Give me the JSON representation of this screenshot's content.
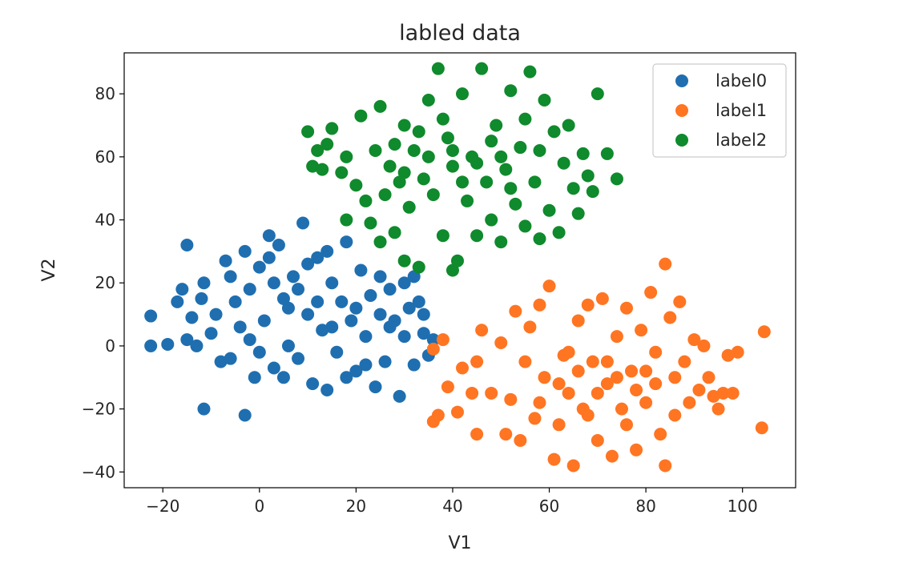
{
  "chart_data": {
    "type": "scatter",
    "title": "labled data",
    "xlabel": "V1",
    "ylabel": "V2",
    "xlim": [
      -28,
      111
    ],
    "ylim": [
      -45,
      93
    ],
    "xticks": [
      -20,
      0,
      20,
      40,
      60,
      80,
      100
    ],
    "yticks": [
      -40,
      -20,
      0,
      20,
      40,
      60,
      80
    ],
    "xtick_labels": [
      "−20",
      "0",
      "20",
      "40",
      "60",
      "80",
      "100"
    ],
    "ytick_labels": [
      "−40",
      "−20",
      "0",
      "20",
      "40",
      "60",
      "80"
    ],
    "grid": false,
    "legend_position": "top-right",
    "series": [
      {
        "name": "label0",
        "color": "#1f6fb0",
        "points": [
          [
            -22.5,
            9.5
          ],
          [
            -22.5,
            0
          ],
          [
            -19,
            0.5
          ],
          [
            -15,
            32
          ],
          [
            -16,
            18
          ],
          [
            -17,
            14
          ],
          [
            -14,
            9
          ],
          [
            -15,
            2
          ],
          [
            -13,
            0
          ],
          [
            -11.5,
            20
          ],
          [
            -11.5,
            -20
          ],
          [
            -9,
            10
          ],
          [
            -7,
            27
          ],
          [
            -8,
            -5
          ],
          [
            -6,
            22
          ],
          [
            -5,
            14
          ],
          [
            -4,
            6
          ],
          [
            -3,
            -22
          ],
          [
            -3,
            30
          ],
          [
            -2,
            18
          ],
          [
            -1,
            -10
          ],
          [
            0,
            25
          ],
          [
            1,
            8
          ],
          [
            2,
            35
          ],
          [
            3,
            -7
          ],
          [
            4,
            32
          ],
          [
            5,
            15
          ],
          [
            6,
            0
          ],
          [
            7,
            22
          ],
          [
            8,
            -4
          ],
          [
            9,
            39
          ],
          [
            10,
            10
          ],
          [
            11,
            -12
          ],
          [
            12,
            28
          ],
          [
            13,
            5
          ],
          [
            14,
            -14
          ],
          [
            15,
            20
          ],
          [
            16,
            -2
          ],
          [
            17,
            14
          ],
          [
            18,
            33
          ],
          [
            19,
            8
          ],
          [
            20,
            -8
          ],
          [
            21,
            24
          ],
          [
            22,
            3
          ],
          [
            23,
            16
          ],
          [
            24,
            -13
          ],
          [
            25,
            10
          ],
          [
            26,
            -5
          ],
          [
            27,
            18
          ],
          [
            28,
            8
          ],
          [
            29,
            -16
          ],
          [
            30,
            3
          ],
          [
            31,
            12
          ],
          [
            32,
            -6
          ],
          [
            33,
            14
          ],
          [
            34,
            4
          ],
          [
            35,
            -3
          ],
          [
            34,
            10
          ],
          [
            36,
            2
          ],
          [
            3,
            20
          ],
          [
            5,
            -10
          ],
          [
            8,
            18
          ],
          [
            12,
            14
          ],
          [
            -10,
            4
          ],
          [
            -6,
            -4
          ],
          [
            0,
            -2
          ],
          [
            15,
            6
          ],
          [
            20,
            12
          ],
          [
            25,
            22
          ],
          [
            10,
            26
          ],
          [
            6,
            12
          ],
          [
            -2,
            2
          ],
          [
            18,
            -10
          ],
          [
            22,
            -6
          ],
          [
            27,
            6
          ],
          [
            14,
            30
          ],
          [
            -12,
            15
          ],
          [
            2,
            28
          ],
          [
            30,
            20
          ],
          [
            32,
            22
          ]
        ]
      },
      {
        "name": "label1",
        "color": "#ff7522",
        "points": [
          [
            36,
            -24
          ],
          [
            37,
            -22
          ],
          [
            36,
            -1
          ],
          [
            38,
            2
          ],
          [
            39,
            -13
          ],
          [
            41,
            -21
          ],
          [
            42,
            -7
          ],
          [
            44,
            -15
          ],
          [
            45,
            -28
          ],
          [
            45,
            -5
          ],
          [
            46,
            5
          ],
          [
            48,
            -15
          ],
          [
            50,
            1
          ],
          [
            51,
            -28
          ],
          [
            52,
            -17
          ],
          [
            53,
            11
          ],
          [
            54,
            -30
          ],
          [
            55,
            -5
          ],
          [
            56,
            6
          ],
          [
            57,
            -23
          ],
          [
            58,
            13
          ],
          [
            59,
            -10
          ],
          [
            60,
            19
          ],
          [
            61,
            -36
          ],
          [
            62,
            -25
          ],
          [
            63,
            -3
          ],
          [
            64,
            -15
          ],
          [
            65,
            -38
          ],
          [
            66,
            8
          ],
          [
            67,
            -20
          ],
          [
            68,
            13
          ],
          [
            69,
            -5
          ],
          [
            70,
            -30
          ],
          [
            71,
            15
          ],
          [
            72,
            -12
          ],
          [
            73,
            -35
          ],
          [
            74,
            3
          ],
          [
            75,
            -20
          ],
          [
            76,
            12
          ],
          [
            77,
            -8
          ],
          [
            78,
            -33
          ],
          [
            79,
            5
          ],
          [
            80,
            -18
          ],
          [
            81,
            17
          ],
          [
            82,
            -2
          ],
          [
            83,
            -28
          ],
          [
            84,
            26
          ],
          [
            84,
            -38
          ],
          [
            85,
            9
          ],
          [
            86,
            -22
          ],
          [
            87,
            14
          ],
          [
            88,
            -5
          ],
          [
            89,
            -18
          ],
          [
            90,
            2
          ],
          [
            91,
            -14
          ],
          [
            92,
            0
          ],
          [
            93,
            -10
          ],
          [
            94,
            -16
          ],
          [
            95,
            -20
          ],
          [
            96,
            -15
          ],
          [
            97,
            -3
          ],
          [
            98,
            -15
          ],
          [
            99,
            -2
          ],
          [
            104.5,
            4.5
          ],
          [
            104,
            -26
          ],
          [
            62,
            -12
          ],
          [
            66,
            -8
          ],
          [
            70,
            -15
          ],
          [
            74,
            -10
          ],
          [
            78,
            -14
          ],
          [
            82,
            -12
          ],
          [
            68,
            -22
          ],
          [
            72,
            -5
          ],
          [
            76,
            -25
          ],
          [
            80,
            -8
          ],
          [
            64,
            -2
          ],
          [
            58,
            -18
          ],
          [
            86,
            -10
          ]
        ]
      },
      {
        "name": "label2",
        "color": "#0f8a2c",
        "points": [
          [
            10,
            68
          ],
          [
            11,
            57
          ],
          [
            12,
            62
          ],
          [
            13,
            56
          ],
          [
            14,
            64
          ],
          [
            15,
            69
          ],
          [
            17,
            55
          ],
          [
            18,
            60
          ],
          [
            18,
            40
          ],
          [
            20,
            51
          ],
          [
            21,
            73
          ],
          [
            22,
            46
          ],
          [
            23,
            39
          ],
          [
            24,
            62
          ],
          [
            25,
            33
          ],
          [
            25,
            76
          ],
          [
            26,
            48
          ],
          [
            27,
            57
          ],
          [
            28,
            36
          ],
          [
            29,
            52
          ],
          [
            30,
            27
          ],
          [
            30,
            70
          ],
          [
            31,
            44
          ],
          [
            32,
            62
          ],
          [
            33,
            25
          ],
          [
            34,
            53
          ],
          [
            35,
            78
          ],
          [
            36,
            48
          ],
          [
            37,
            88
          ],
          [
            38,
            35
          ],
          [
            39,
            66
          ],
          [
            40,
            24
          ],
          [
            40,
            57
          ],
          [
            41,
            27
          ],
          [
            42,
            80
          ],
          [
            43,
            46
          ],
          [
            44,
            60
          ],
          [
            45,
            35
          ],
          [
            46,
            88
          ],
          [
            47,
            52
          ],
          [
            48,
            40
          ],
          [
            49,
            70
          ],
          [
            50,
            33
          ],
          [
            51,
            56
          ],
          [
            52,
            81
          ],
          [
            53,
            45
          ],
          [
            54,
            63
          ],
          [
            55,
            38
          ],
          [
            56,
            87
          ],
          [
            57,
            52
          ],
          [
            58,
            34
          ],
          [
            59,
            78
          ],
          [
            60,
            43
          ],
          [
            61,
            68
          ],
          [
            62,
            36
          ],
          [
            63,
            58
          ],
          [
            64,
            70
          ],
          [
            65,
            50
          ],
          [
            66,
            42
          ],
          [
            67,
            61
          ],
          [
            68,
            54
          ],
          [
            69,
            49
          ],
          [
            70,
            80
          ],
          [
            72,
            61
          ],
          [
            74,
            53
          ],
          [
            35,
            60
          ],
          [
            40,
            62
          ],
          [
            45,
            58
          ],
          [
            50,
            60
          ],
          [
            30,
            55
          ],
          [
            38,
            72
          ],
          [
            48,
            65
          ],
          [
            55,
            72
          ],
          [
            42,
            52
          ],
          [
            33,
            68
          ],
          [
            58,
            62
          ],
          [
            28,
            64
          ],
          [
            52,
            50
          ]
        ]
      }
    ]
  }
}
